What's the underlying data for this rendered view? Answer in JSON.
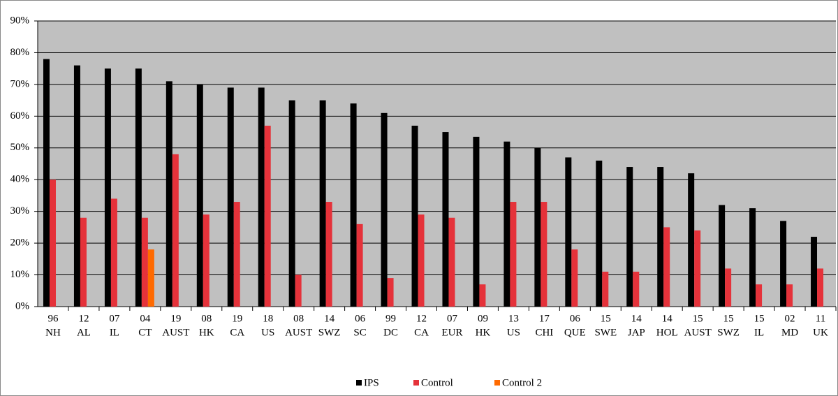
{
  "chart_data": {
    "type": "bar",
    "categories": [
      [
        "96",
        "NH"
      ],
      [
        "12",
        "AL"
      ],
      [
        "07",
        "IL"
      ],
      [
        "04",
        "CT"
      ],
      [
        "19",
        "AUST"
      ],
      [
        "08",
        "HK"
      ],
      [
        "19",
        "CA"
      ],
      [
        "18",
        "US"
      ],
      [
        "08",
        "AUST"
      ],
      [
        "14",
        "SWZ"
      ],
      [
        "06",
        "SC"
      ],
      [
        "99",
        "DC"
      ],
      [
        "12",
        "CA"
      ],
      [
        "07",
        "EUR"
      ],
      [
        "09",
        "HK"
      ],
      [
        "13",
        "US"
      ],
      [
        "17",
        "CHI"
      ],
      [
        "06",
        "QUE"
      ],
      [
        "15",
        "SWE"
      ],
      [
        "14",
        "JAP"
      ],
      [
        "14",
        "HOL"
      ],
      [
        "15",
        "AUST"
      ],
      [
        "15",
        "SWZ"
      ],
      [
        "15",
        "IL"
      ],
      [
        "02",
        "MD"
      ],
      [
        "11",
        "UK"
      ]
    ],
    "series": [
      {
        "name": "IPS",
        "color": "#000000",
        "values": [
          78,
          76,
          75,
          75,
          71,
          70,
          69,
          69,
          65,
          65,
          64,
          61,
          57,
          55,
          53.5,
          52,
          50,
          47,
          46,
          44,
          44,
          42,
          32,
          31,
          27,
          22
        ]
      },
      {
        "name": "Control",
        "color": "#e5323a",
        "values": [
          40,
          28,
          34,
          28,
          48,
          29,
          33,
          57,
          10,
          33,
          26,
          9,
          29,
          28,
          7,
          33,
          33,
          18,
          11,
          11,
          25,
          24,
          12,
          7,
          7,
          12
        ]
      },
      {
        "name": "Control 2",
        "color": "#ff6a00",
        "values": [
          null,
          null,
          null,
          18,
          null,
          null,
          null,
          null,
          null,
          null,
          null,
          null,
          null,
          null,
          null,
          null,
          null,
          null,
          null,
          null,
          null,
          null,
          null,
          null,
          null,
          null
        ]
      }
    ],
    "ylim": [
      0,
      90
    ],
    "yticks": [
      {
        "value": 0,
        "label": "0%"
      },
      {
        "value": 10,
        "label": "10%"
      },
      {
        "value": 20,
        "label": "20%"
      },
      {
        "value": 30,
        "label": "30%"
      },
      {
        "value": 40,
        "label": "40%"
      },
      {
        "value": 50,
        "label": "50%"
      },
      {
        "value": 60,
        "label": "60%"
      },
      {
        "value": 70,
        "label": "70%"
      },
      {
        "value": 80,
        "label": "80%"
      },
      {
        "value": 90,
        "label": "90%"
      }
    ],
    "grid": true,
    "legend": "bottom"
  }
}
